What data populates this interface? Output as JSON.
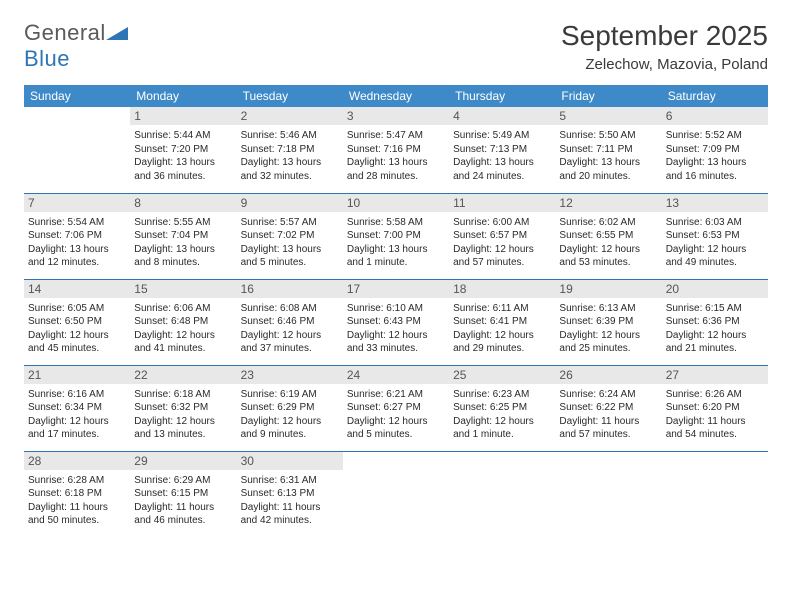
{
  "brand": {
    "word1": "General",
    "word2": "Blue",
    "text_color": "#5a5a5a",
    "accent_color": "#2e75b6"
  },
  "title": "September 2025",
  "location": "Zelechow, Mazovia, Poland",
  "colors": {
    "header_bg": "#3e8ac8",
    "header_text": "#ffffff",
    "daynum_bg": "#e8e8e8",
    "daynum_text": "#555555",
    "rule": "#2e75b6",
    "body_text": "#2a2a2a",
    "page_bg": "#ffffff"
  },
  "typography": {
    "title_fontsize": 28,
    "location_fontsize": 15,
    "weekday_fontsize": 12,
    "daynum_fontsize": 12,
    "cell_fontsize": 10
  },
  "weekdays": [
    "Sunday",
    "Monday",
    "Tuesday",
    "Wednesday",
    "Thursday",
    "Friday",
    "Saturday"
  ],
  "weeks": [
    [
      null,
      {
        "n": "1",
        "sunrise": "Sunrise: 5:44 AM",
        "sunset": "Sunset: 7:20 PM",
        "daylight": "Daylight: 13 hours and 36 minutes."
      },
      {
        "n": "2",
        "sunrise": "Sunrise: 5:46 AM",
        "sunset": "Sunset: 7:18 PM",
        "daylight": "Daylight: 13 hours and 32 minutes."
      },
      {
        "n": "3",
        "sunrise": "Sunrise: 5:47 AM",
        "sunset": "Sunset: 7:16 PM",
        "daylight": "Daylight: 13 hours and 28 minutes."
      },
      {
        "n": "4",
        "sunrise": "Sunrise: 5:49 AM",
        "sunset": "Sunset: 7:13 PM",
        "daylight": "Daylight: 13 hours and 24 minutes."
      },
      {
        "n": "5",
        "sunrise": "Sunrise: 5:50 AM",
        "sunset": "Sunset: 7:11 PM",
        "daylight": "Daylight: 13 hours and 20 minutes."
      },
      {
        "n": "6",
        "sunrise": "Sunrise: 5:52 AM",
        "sunset": "Sunset: 7:09 PM",
        "daylight": "Daylight: 13 hours and 16 minutes."
      }
    ],
    [
      {
        "n": "7",
        "sunrise": "Sunrise: 5:54 AM",
        "sunset": "Sunset: 7:06 PM",
        "daylight": "Daylight: 13 hours and 12 minutes."
      },
      {
        "n": "8",
        "sunrise": "Sunrise: 5:55 AM",
        "sunset": "Sunset: 7:04 PM",
        "daylight": "Daylight: 13 hours and 8 minutes."
      },
      {
        "n": "9",
        "sunrise": "Sunrise: 5:57 AM",
        "sunset": "Sunset: 7:02 PM",
        "daylight": "Daylight: 13 hours and 5 minutes."
      },
      {
        "n": "10",
        "sunrise": "Sunrise: 5:58 AM",
        "sunset": "Sunset: 7:00 PM",
        "daylight": "Daylight: 13 hours and 1 minute."
      },
      {
        "n": "11",
        "sunrise": "Sunrise: 6:00 AM",
        "sunset": "Sunset: 6:57 PM",
        "daylight": "Daylight: 12 hours and 57 minutes."
      },
      {
        "n": "12",
        "sunrise": "Sunrise: 6:02 AM",
        "sunset": "Sunset: 6:55 PM",
        "daylight": "Daylight: 12 hours and 53 minutes."
      },
      {
        "n": "13",
        "sunrise": "Sunrise: 6:03 AM",
        "sunset": "Sunset: 6:53 PM",
        "daylight": "Daylight: 12 hours and 49 minutes."
      }
    ],
    [
      {
        "n": "14",
        "sunrise": "Sunrise: 6:05 AM",
        "sunset": "Sunset: 6:50 PM",
        "daylight": "Daylight: 12 hours and 45 minutes."
      },
      {
        "n": "15",
        "sunrise": "Sunrise: 6:06 AM",
        "sunset": "Sunset: 6:48 PM",
        "daylight": "Daylight: 12 hours and 41 minutes."
      },
      {
        "n": "16",
        "sunrise": "Sunrise: 6:08 AM",
        "sunset": "Sunset: 6:46 PM",
        "daylight": "Daylight: 12 hours and 37 minutes."
      },
      {
        "n": "17",
        "sunrise": "Sunrise: 6:10 AM",
        "sunset": "Sunset: 6:43 PM",
        "daylight": "Daylight: 12 hours and 33 minutes."
      },
      {
        "n": "18",
        "sunrise": "Sunrise: 6:11 AM",
        "sunset": "Sunset: 6:41 PM",
        "daylight": "Daylight: 12 hours and 29 minutes."
      },
      {
        "n": "19",
        "sunrise": "Sunrise: 6:13 AM",
        "sunset": "Sunset: 6:39 PM",
        "daylight": "Daylight: 12 hours and 25 minutes."
      },
      {
        "n": "20",
        "sunrise": "Sunrise: 6:15 AM",
        "sunset": "Sunset: 6:36 PM",
        "daylight": "Daylight: 12 hours and 21 minutes."
      }
    ],
    [
      {
        "n": "21",
        "sunrise": "Sunrise: 6:16 AM",
        "sunset": "Sunset: 6:34 PM",
        "daylight": "Daylight: 12 hours and 17 minutes."
      },
      {
        "n": "22",
        "sunrise": "Sunrise: 6:18 AM",
        "sunset": "Sunset: 6:32 PM",
        "daylight": "Daylight: 12 hours and 13 minutes."
      },
      {
        "n": "23",
        "sunrise": "Sunrise: 6:19 AM",
        "sunset": "Sunset: 6:29 PM",
        "daylight": "Daylight: 12 hours and 9 minutes."
      },
      {
        "n": "24",
        "sunrise": "Sunrise: 6:21 AM",
        "sunset": "Sunset: 6:27 PM",
        "daylight": "Daylight: 12 hours and 5 minutes."
      },
      {
        "n": "25",
        "sunrise": "Sunrise: 6:23 AM",
        "sunset": "Sunset: 6:25 PM",
        "daylight": "Daylight: 12 hours and 1 minute."
      },
      {
        "n": "26",
        "sunrise": "Sunrise: 6:24 AM",
        "sunset": "Sunset: 6:22 PM",
        "daylight": "Daylight: 11 hours and 57 minutes."
      },
      {
        "n": "27",
        "sunrise": "Sunrise: 6:26 AM",
        "sunset": "Sunset: 6:20 PM",
        "daylight": "Daylight: 11 hours and 54 minutes."
      }
    ],
    [
      {
        "n": "28",
        "sunrise": "Sunrise: 6:28 AM",
        "sunset": "Sunset: 6:18 PM",
        "daylight": "Daylight: 11 hours and 50 minutes."
      },
      {
        "n": "29",
        "sunrise": "Sunrise: 6:29 AM",
        "sunset": "Sunset: 6:15 PM",
        "daylight": "Daylight: 11 hours and 46 minutes."
      },
      {
        "n": "30",
        "sunrise": "Sunrise: 6:31 AM",
        "sunset": "Sunset: 6:13 PM",
        "daylight": "Daylight: 11 hours and 42 minutes."
      },
      null,
      null,
      null,
      null
    ]
  ]
}
